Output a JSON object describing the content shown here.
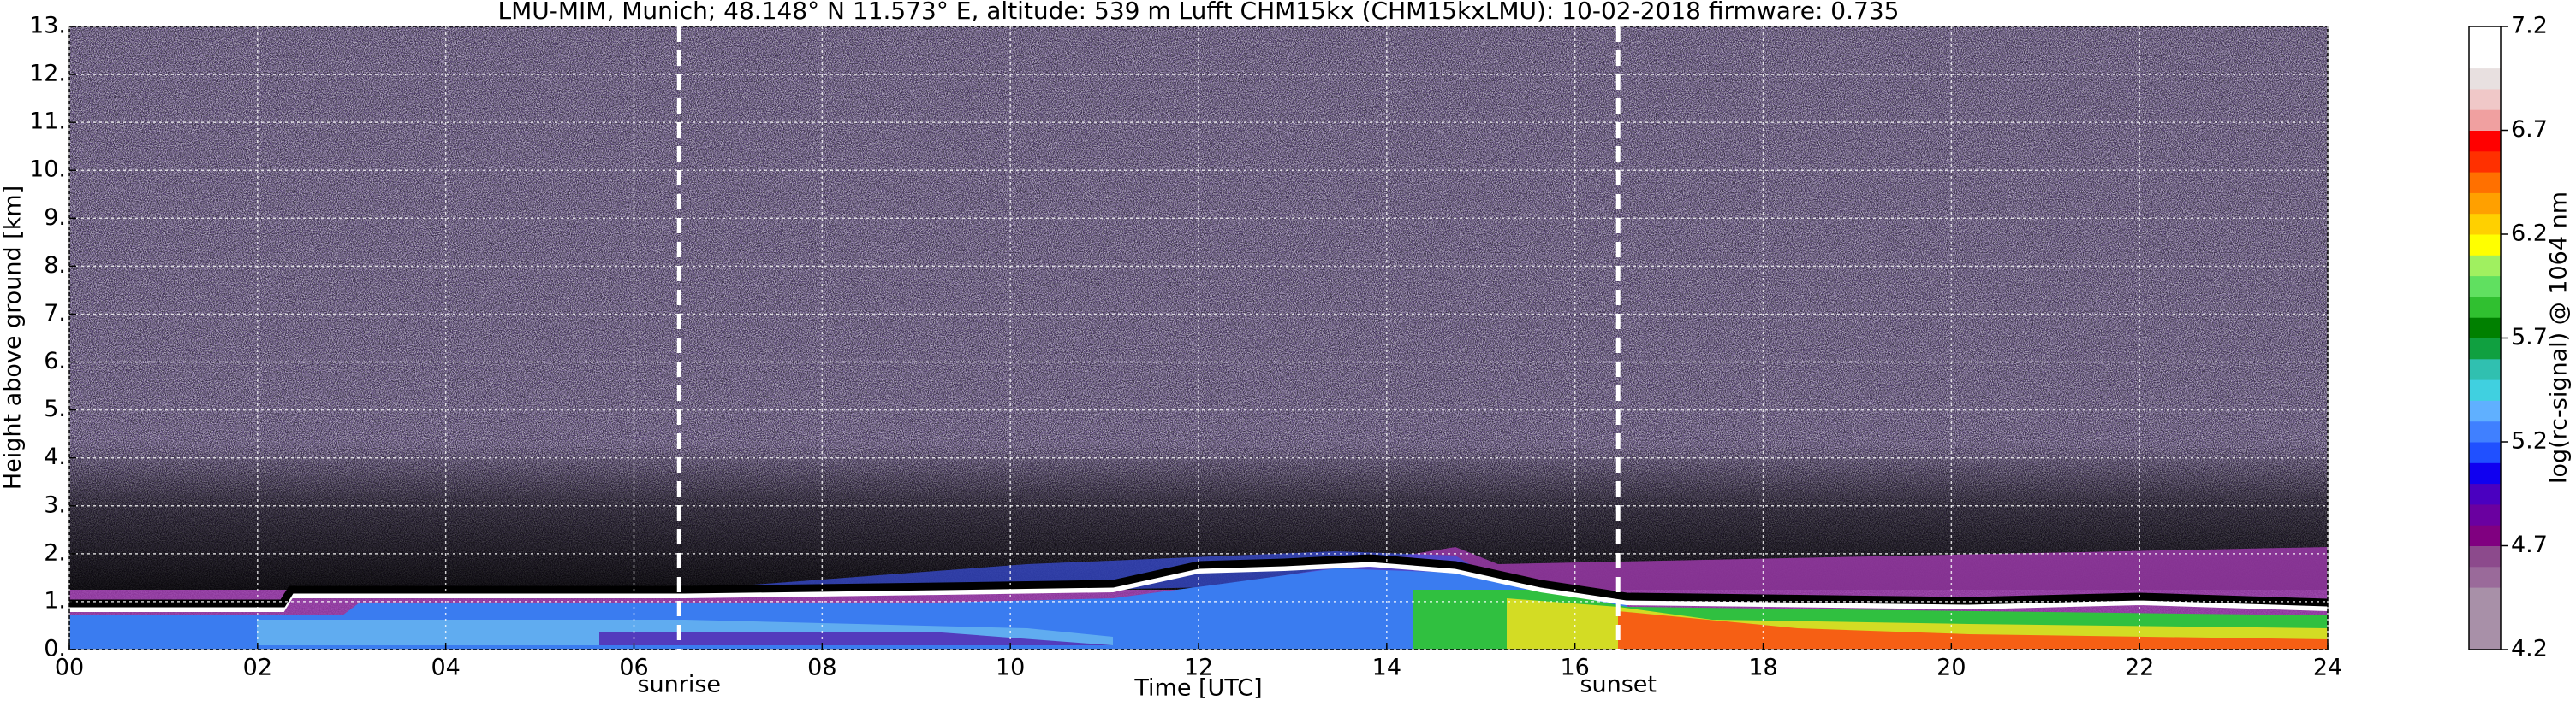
{
  "chart_data": {
    "type": "heatmap",
    "title": "LMU-MIM, Munich; 48.148° N 11.573° E, altitude: 539 m    Lufft CHM15kx (CHM15kxLMU): 10-02-2018    firmware: 0.735",
    "xlabel": "Time [UTC]",
    "ylabel": "Height above ground [km]",
    "xlim": [
      0,
      24
    ],
    "xticks": [
      {
        "value": 0,
        "label": "00"
      },
      {
        "value": 2,
        "label": "02"
      },
      {
        "value": 4,
        "label": "04"
      },
      {
        "value": 6,
        "label": "06"
      },
      {
        "value": 8,
        "label": "08"
      },
      10,
      12,
      14,
      16,
      18,
      20,
      22,
      24
    ],
    "ylim": [
      0,
      13
    ],
    "yticks": [
      {
        "value": 0,
        "label": "0."
      },
      {
        "value": 1,
        "label": "1."
      },
      {
        "value": 2,
        "label": "2."
      },
      {
        "value": 3,
        "label": "3."
      },
      {
        "value": 4,
        "label": "4."
      },
      {
        "value": 5,
        "label": "5."
      },
      {
        "value": 6,
        "label": "6."
      },
      {
        "value": 7,
        "label": "7."
      },
      {
        "value": 8,
        "label": "8."
      },
      {
        "value": 9,
        "label": "9."
      },
      {
        "value": 10,
        "label": "10."
      },
      {
        "value": 11,
        "label": "11."
      },
      {
        "value": 12,
        "label": "12."
      },
      {
        "value": 13,
        "label": "13."
      }
    ],
    "grid": true,
    "events": [
      {
        "label": "sunrise",
        "x": 6.48
      },
      {
        "label": "sunset",
        "x": 16.46
      }
    ],
    "colorbar": {
      "label": "log(rc-signal) @ 1064 nm",
      "lim": [
        4.2,
        7.2
      ],
      "ticks": [
        4.2,
        4.7,
        5.2,
        5.7,
        6.2,
        6.7,
        7.2
      ],
      "colors": [
        "#a890a8",
        "#a890a8",
        "#a890a8",
        "#9a6a9a",
        "#8c4a8c",
        "#800080",
        "#6a00a0",
        "#4a00c0",
        "#1000f0",
        "#2050ff",
        "#4080ff",
        "#60b0ff",
        "#40d0e0",
        "#30c0b0",
        "#10a040",
        "#008000",
        "#30c030",
        "#60e060",
        "#a0f060",
        "#ffff00",
        "#ffd000",
        "#ffa000",
        "#ff7000",
        "#ff3000",
        "#ff0000",
        "#f0a0a0",
        "#f0c8c8",
        "#e8e0e0",
        "#ffffff",
        "#ffffff"
      ]
    }
  }
}
